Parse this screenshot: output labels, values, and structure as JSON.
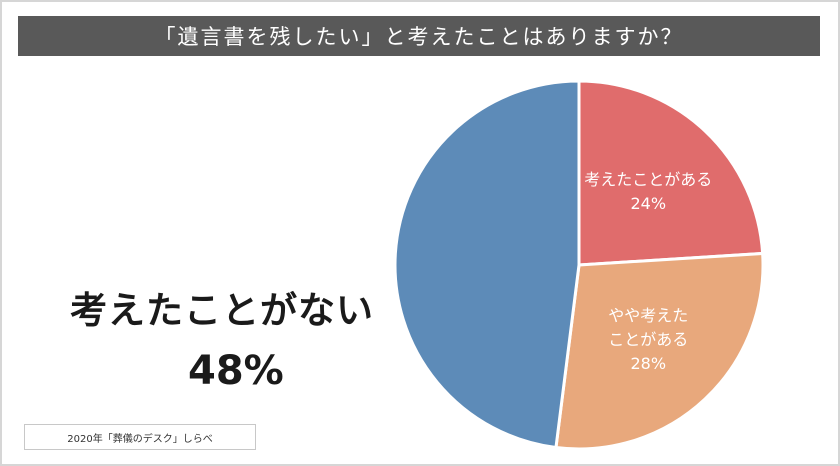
{
  "title": "「遺言書を残したい」と考えたことはありますか？",
  "source": "2020年「葬儀のデスク」しらべ",
  "callout": {
    "label": "考えたことがない",
    "value": "48%"
  },
  "chart_data": {
    "type": "pie",
    "title": "「遺言書を残したい」と考えたことはありますか？",
    "slices": [
      {
        "label": "考えたことがある",
        "value": 24,
        "display": "24%",
        "color": "#e06c6c"
      },
      {
        "label": "やや考えたことがある",
        "display_lines": [
          "やや考えた",
          "ことがある"
        ],
        "value": 28,
        "display": "28%",
        "color": "#e8a87c"
      },
      {
        "label": "考えたことがない",
        "value": 48,
        "display": "48%",
        "color": "#5d8bb8"
      }
    ]
  }
}
